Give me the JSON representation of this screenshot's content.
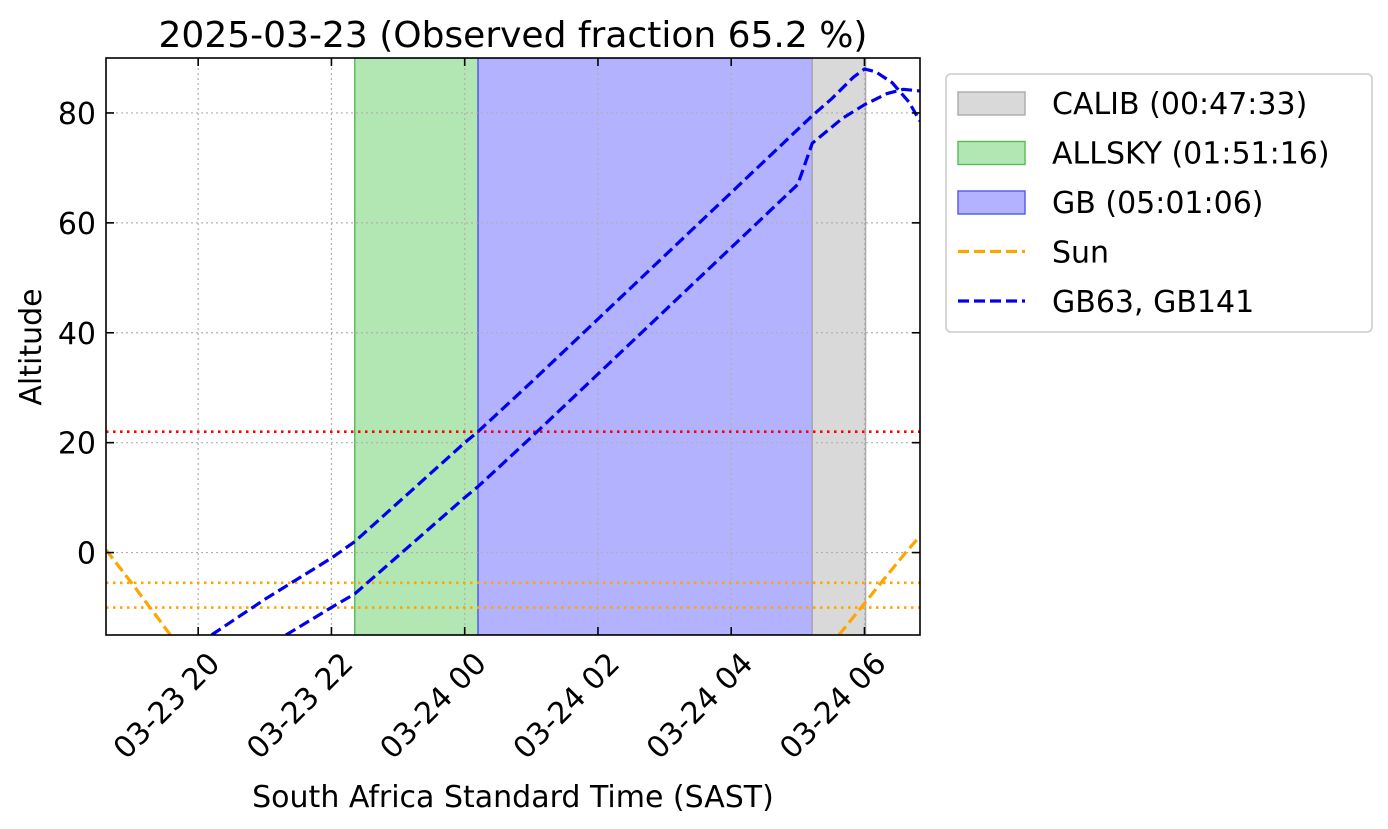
{
  "chart_data": {
    "type": "line",
    "title": "2025-03-23 (Observed fraction 65.2 %)",
    "xlabel": "South Africa Standard Time (SAST)",
    "ylabel": "Altitude",
    "xlim": [
      "2025-03-23T18:37",
      "2025-03-24T06:50"
    ],
    "ylim": [
      -15,
      90
    ],
    "grid": true,
    "x_tick_labels": [
      {
        "t": "2025-03-23T20:00",
        "label": "03-23 20"
      },
      {
        "t": "2025-03-23T22:00",
        "label": "03-23 22"
      },
      {
        "t": "2025-03-24T00:00",
        "label": "03-24 00"
      },
      {
        "t": "2025-03-24T02:00",
        "label": "03-24 02"
      },
      {
        "t": "2025-03-24T04:00",
        "label": "03-24 04"
      },
      {
        "t": "2025-03-24T06:00",
        "label": "03-24 06"
      }
    ],
    "y_tick_labels": [
      {
        "v": 0,
        "label": "0"
      },
      {
        "v": 20,
        "label": "20"
      },
      {
        "v": 40,
        "label": "40"
      },
      {
        "v": 60,
        "label": "60"
      },
      {
        "v": 80,
        "label": "80"
      }
    ],
    "legend_position": "outside-right",
    "spans": [
      {
        "name": "ALLSKY (01:51:16)",
        "start": "2025-03-23T22:21",
        "end": "2025-03-24T00:12",
        "color": "#b2e6b2",
        "edge": "#55bb55"
      },
      {
        "name": "GB (05:01:06)",
        "start": "2025-03-24T00:12",
        "end": "2025-03-24T05:13",
        "color": "#b2b2ff",
        "edge": "#5555ee"
      },
      {
        "name": "CALIB (00:47:33)",
        "start": "2025-03-24T05:13",
        "end": "2025-03-24T06:01",
        "color": "#d9d9d9",
        "edge": "#aaaaaa"
      }
    ],
    "legend_entries": [
      {
        "label": "CALIB (00:47:33)",
        "kind": "patch",
        "color": "#d9d9d9",
        "edge": "#aaaaaa"
      },
      {
        "label": "ALLSKY (01:51:16)",
        "kind": "patch",
        "color": "#b2e6b2",
        "edge": "#55bb55"
      },
      {
        "label": "GB (05:01:06)",
        "kind": "patch",
        "color": "#b2b2ff",
        "edge": "#5555ee"
      },
      {
        "label": "Sun",
        "kind": "dash",
        "color": "#ffa500"
      },
      {
        "label": "GB63, GB141",
        "kind": "dash",
        "color": "#0000ee"
      }
    ],
    "hlines": [
      {
        "y": 22,
        "color": "#ff0000",
        "style": "dotted"
      },
      {
        "y": -5.5,
        "color": "#ffa500",
        "style": "dotted"
      },
      {
        "y": -10,
        "color": "#ffa500",
        "style": "dotted"
      }
    ],
    "series": [
      {
        "name": "Sun",
        "color": "#ffa500",
        "dash": true,
        "segments": [
          [
            [
              "2025-03-23T18:37",
              0.5
            ],
            [
              "2025-03-23T19:00",
              -5.5
            ],
            [
              "2025-03-23T19:24",
              -12
            ],
            [
              "2025-03-23T19:35",
              -15
            ]
          ],
          [
            [
              "2025-03-24T05:37",
              -15
            ],
            [
              "2025-03-24T05:55",
              -10.5
            ],
            [
              "2025-03-24T06:15",
              -5.5
            ],
            [
              "2025-03-24T06:37",
              0
            ],
            [
              "2025-03-24T06:50",
              3
            ]
          ]
        ]
      },
      {
        "name": "GB63",
        "color": "#0000ee",
        "dash": true,
        "segments": [
          [
            [
              "2025-03-23T20:12",
              -15
            ],
            [
              "2025-03-23T21:00",
              -8.5
            ],
            [
              "2025-03-23T22:00",
              -1
            ],
            [
              "2025-03-23T22:21",
              2
            ],
            [
              "2025-03-24T00:00",
              20
            ],
            [
              "2025-03-24T00:12",
              22
            ],
            [
              "2025-03-24T01:00",
              31
            ],
            [
              "2025-03-24T02:00",
              42.5
            ],
            [
              "2025-03-24T03:00",
              54
            ],
            [
              "2025-03-24T04:00",
              65.5
            ],
            [
              "2025-03-24T05:00",
              77
            ],
            [
              "2025-03-24T05:13",
              79.5
            ],
            [
              "2025-03-24T05:30",
              82.5
            ],
            [
              "2025-03-24T05:50",
              86.5
            ],
            [
              "2025-03-24T06:00",
              88
            ],
            [
              "2025-03-24T06:10",
              87.5
            ],
            [
              "2025-03-24T06:25",
              85.5
            ],
            [
              "2025-03-24T06:40",
              82
            ],
            [
              "2025-03-24T06:50",
              78.5
            ]
          ]
        ]
      },
      {
        "name": "GB141",
        "color": "#0000ee",
        "dash": true,
        "segments": [
          [
            [
              "2025-03-23T21:19",
              -15
            ],
            [
              "2025-03-23T22:00",
              -10
            ],
            [
              "2025-03-23T22:21",
              -7.5
            ],
            [
              "2025-03-24T00:00",
              10
            ],
            [
              "2025-03-24T00:12",
              12
            ],
            [
              "2025-03-24T01:00",
              21
            ],
            [
              "2025-03-24T02:00",
              32.5
            ],
            [
              "2025-03-24T03:00",
              44
            ],
            [
              "2025-03-24T04:00",
              55.5
            ],
            [
              "2025-03-24T05:00",
              67
            ],
            [
              "2025-03-24T05:13",
              74.5
            ],
            [
              "2025-03-24T05:40",
              79
            ],
            [
              "2025-03-24T06:00",
              81.5
            ],
            [
              "2025-03-24T06:20",
              83.5
            ],
            [
              "2025-03-24T06:35",
              84.3
            ],
            [
              "2025-03-24T06:50",
              84
            ]
          ]
        ]
      }
    ]
  }
}
